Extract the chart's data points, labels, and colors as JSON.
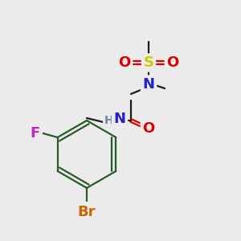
{
  "bg_color": "#ebebeb",
  "colors": {
    "N": "#2222cc",
    "O": "#dd0000",
    "S": "#cccc00",
    "F": "#cc22cc",
    "Br": "#cc6600",
    "NH": "#6688aa",
    "bond": "#1a1a1a",
    "ring": "#2a5a2a"
  },
  "bond_width": 1.6,
  "font_size": 12
}
